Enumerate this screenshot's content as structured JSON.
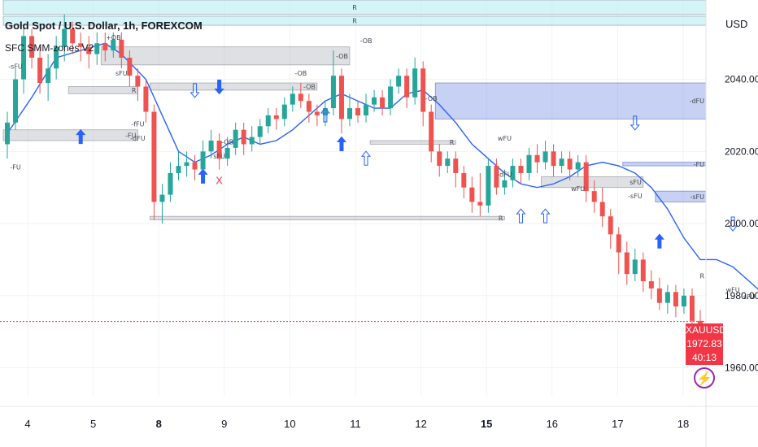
{
  "header": {
    "title": "Gold Spot / U.S. Dollar, 1h, FOREXCOM",
    "indicator": "SFC SMM-zones V2",
    "currency": "USD"
  },
  "price_tag": {
    "symbol": "XAUUSD",
    "price": "1972.83",
    "countdown": "40:13"
  },
  "bolt_icon": "lightning-icon",
  "colors": {
    "bull": "#26a69a",
    "bear": "#ef5350",
    "ema": "#2962ff",
    "zone_gray": "#9598a1",
    "zone_blue": "#5b7be0",
    "zone_cyan": "#b2ebf2",
    "hline": "#f23645"
  },
  "chart_data": {
    "type": "candlestick",
    "title": "Gold Spot / U.S. Dollar, 1h, FOREXCOM",
    "ylabel": "USD",
    "ylim": [
      1952,
      2062
    ],
    "y_ticks": [
      "1960.00",
      "1980.00",
      "2000.00",
      "2020.00",
      "2040.00"
    ],
    "x_ticks": [
      "4",
      "5",
      "8",
      "9",
      "10",
      "11",
      "12",
      "15",
      "16",
      "17",
      "18"
    ],
    "bold_x_ticks": [
      "8",
      "15"
    ],
    "last_price": 1972.83,
    "ema": [
      [
        0,
        2025
      ],
      [
        3,
        2035
      ],
      [
        6,
        2046
      ],
      [
        9,
        2048
      ],
      [
        12,
        2050
      ],
      [
        14,
        2047
      ],
      [
        17,
        2040
      ],
      [
        19,
        2030
      ],
      [
        21,
        2020
      ],
      [
        23,
        2017
      ],
      [
        25,
        2019
      ],
      [
        27,
        2022
      ],
      [
        29,
        2024
      ],
      [
        31,
        2022
      ],
      [
        33,
        2023
      ],
      [
        35,
        2026
      ],
      [
        37,
        2030
      ],
      [
        39,
        2034
      ],
      [
        41,
        2036
      ],
      [
        43,
        2034
      ],
      [
        45,
        2032
      ],
      [
        47,
        2032
      ],
      [
        49,
        2036
      ],
      [
        51,
        2037
      ],
      [
        53,
        2033
      ],
      [
        55,
        2028
      ],
      [
        57,
        2022
      ],
      [
        59,
        2018
      ],
      [
        61,
        2014
      ],
      [
        63,
        2011
      ],
      [
        65,
        2010
      ],
      [
        67,
        2011
      ],
      [
        69,
        2013
      ],
      [
        71,
        2016
      ],
      [
        73,
        2017
      ],
      [
        75,
        2016
      ],
      [
        77,
        2014
      ],
      [
        79,
        2010
      ],
      [
        81,
        2004
      ],
      [
        83,
        1996
      ],
      [
        85,
        1990
      ],
      [
        87,
        1990
      ],
      [
        89,
        1988
      ],
      [
        91,
        1984
      ],
      [
        93,
        1980
      ],
      [
        95,
        1978
      ]
    ],
    "candles": [
      [
        2022,
        2028,
        2018,
        2031
      ],
      [
        2028,
        2040,
        2026,
        2043
      ],
      [
        2040,
        2052,
        2036,
        2055
      ],
      [
        2052,
        2046,
        2043,
        2054
      ],
      [
        2046,
        2039,
        2036,
        2049
      ],
      [
        2039,
        2043,
        2034,
        2047
      ],
      [
        2043,
        2049,
        2040,
        2052
      ],
      [
        2049,
        2054,
        2045,
        2058
      ],
      [
        2054,
        2050,
        2047,
        2056
      ],
      [
        2050,
        2049,
        2045,
        2053
      ],
      [
        2049,
        2047,
        2043,
        2052
      ],
      [
        2047,
        2050,
        2044,
        2053
      ],
      [
        2050,
        2048,
        2045,
        2053
      ],
      [
        2048,
        2051,
        2046,
        2053
      ],
      [
        2051,
        2046,
        2043,
        2053
      ],
      [
        2046,
        2041,
        2038,
        2048
      ],
      [
        2041,
        2038,
        2034,
        2043
      ],
      [
        2038,
        2031,
        2028,
        2040
      ],
      [
        2031,
        2006,
        2001,
        2033
      ],
      [
        2006,
        2008,
        2000,
        2011
      ],
      [
        2008,
        2014,
        2006,
        2017
      ],
      [
        2014,
        2016,
        2012,
        2020
      ],
      [
        2016,
        2017,
        2013,
        2020
      ],
      [
        2017,
        2015,
        2012,
        2019
      ],
      [
        2015,
        2020,
        2013,
        2023
      ],
      [
        2020,
        2023,
        2018,
        2026
      ],
      [
        2023,
        2018,
        2015,
        2025
      ],
      [
        2018,
        2021,
        2016,
        2024
      ],
      [
        2021,
        2026,
        2019,
        2028
      ],
      [
        2026,
        2022,
        2019,
        2028
      ],
      [
        2022,
        2024,
        2020,
        2027
      ],
      [
        2024,
        2027,
        2022,
        2029
      ],
      [
        2027,
        2030,
        2025,
        2032
      ],
      [
        2030,
        2029,
        2026,
        2032
      ],
      [
        2029,
        2033,
        2027,
        2035
      ],
      [
        2033,
        2036,
        2031,
        2038
      ],
      [
        2036,
        2034,
        2032,
        2039
      ],
      [
        2034,
        2031,
        2028,
        2036
      ],
      [
        2031,
        2030,
        2027,
        2033
      ],
      [
        2030,
        2032,
        2027,
        2034
      ],
      [
        2032,
        2041,
        2030,
        2048
      ],
      [
        2041,
        2029,
        2025,
        2043
      ],
      [
        2029,
        2032,
        2027,
        2036
      ],
      [
        2032,
        2030,
        2028,
        2034
      ],
      [
        2030,
        2033,
        2028,
        2036
      ],
      [
        2033,
        2035,
        2031,
        2037
      ],
      [
        2035,
        2032,
        2030,
        2037
      ],
      [
        2032,
        2038,
        2030,
        2040
      ],
      [
        2038,
        2041,
        2036,
        2043
      ],
      [
        2041,
        2035,
        2032,
        2043
      ],
      [
        2035,
        2043,
        2033,
        2046
      ],
      [
        2043,
        2031,
        2027,
        2045
      ],
      [
        2031,
        2020,
        2017,
        2033
      ],
      [
        2020,
        2016,
        2013,
        2022
      ],
      [
        2016,
        2018,
        2014,
        2020
      ],
      [
        2018,
        2014,
        2010,
        2020
      ],
      [
        2014,
        2010,
        2007,
        2016
      ],
      [
        2010,
        2006,
        2003,
        2013
      ],
      [
        2006,
        2005,
        2002,
        2014
      ],
      [
        2005,
        2016,
        2003,
        2018
      ],
      [
        2016,
        2010,
        2008,
        2018
      ],
      [
        2010,
        2012,
        2008,
        2015
      ],
      [
        2012,
        2016,
        2010,
        2018
      ],
      [
        2016,
        2014,
        2011,
        2018
      ],
      [
        2014,
        2019,
        2012,
        2021
      ],
      [
        2019,
        2017,
        2014,
        2022
      ],
      [
        2017,
        2020,
        2015,
        2023
      ],
      [
        2020,
        2016,
        2013,
        2022
      ],
      [
        2016,
        2018,
        2014,
        2020
      ],
      [
        2018,
        2015,
        2012,
        2020
      ],
      [
        2015,
        2017,
        2013,
        2019
      ],
      [
        2017,
        2009,
        2006,
        2019
      ],
      [
        2009,
        2006,
        2003,
        2012
      ],
      [
        2006,
        2002,
        1999,
        2010
      ],
      [
        2002,
        1997,
        1993,
        2004
      ],
      [
        1997,
        1992,
        1986,
        1999
      ],
      [
        1992,
        1986,
        1983,
        1995
      ],
      [
        1986,
        1990,
        1984,
        1993
      ],
      [
        1990,
        1984,
        1981,
        1992
      ],
      [
        1984,
        1982,
        1979,
        1987
      ],
      [
        1982,
        1978,
        1976,
        1985
      ],
      [
        1978,
        1981,
        1975,
        1983
      ],
      [
        1981,
        1977,
        1974,
        1983
      ],
      [
        1977,
        1980,
        1975,
        1982
      ],
      [
        1980,
        1973,
        1971,
        1982
      ],
      [
        1973,
        1972,
        1970,
        1976
      ]
    ]
  },
  "zones": [
    {
      "label": "R",
      "lo": 2058.0,
      "hi": 2062.0,
      "i0": 0,
      "i1": 96,
      "kind": "cyan"
    },
    {
      "label": "R",
      "lo": 2055.0,
      "hi": 2057.5,
      "i0": 0,
      "i1": 96,
      "kind": "cyan"
    },
    {
      "label": "-OB",
      "lo": 2044,
      "hi": 2049,
      "i0": 12,
      "i1": 42,
      "kind": "gray"
    },
    {
      "label": "R",
      "lo": 2036,
      "hi": 2038,
      "i0": 8,
      "i1": 16,
      "kind": "gray"
    },
    {
      "label": "-OB",
      "lo": 2037,
      "hi": 2039,
      "i0": 18,
      "i1": 38,
      "kind": "gray"
    },
    {
      "label": "-FU",
      "lo": 2023,
      "hi": 2026,
      "i0": 0,
      "i1": 16,
      "kind": "gray"
    },
    {
      "label": "R",
      "lo": 2022,
      "hi": 2023,
      "i0": 45,
      "i1": 55,
      "kind": "gray"
    },
    {
      "label": "-dFU",
      "lo": 2029,
      "hi": 2039,
      "i0": 53,
      "i1": 96,
      "kind": "blue"
    },
    {
      "label": "-FU",
      "lo": 2016,
      "hi": 2017,
      "i0": 76,
      "i1": 96,
      "kind": "blue"
    },
    {
      "label": "-sFU",
      "lo": 2006,
      "hi": 2009,
      "i0": 80,
      "i1": 96,
      "kind": "blue"
    },
    {
      "label": "R",
      "lo": 2001,
      "hi": 2002,
      "i0": 18,
      "i1": 61,
      "kind": "gray"
    },
    {
      "label": "sFU",
      "lo": 2010,
      "hi": 2013,
      "i0": 66,
      "i1": 78,
      "kind": "gray"
    },
    {
      "label": "R",
      "lo": 1984,
      "hi": 1987,
      "i0": 87,
      "i1": 96,
      "kind": "gray"
    }
  ],
  "arrows": [
    {
      "i": 9,
      "v": 2024,
      "dir": "up",
      "filled": true
    },
    {
      "i": 23,
      "v": 2037,
      "dir": "down",
      "filled": false
    },
    {
      "i": 26,
      "v": 2038,
      "dir": "down",
      "filled": true
    },
    {
      "i": 24,
      "v": 2013,
      "dir": "up",
      "filled": true
    },
    {
      "i": 41,
      "v": 2022,
      "dir": "up",
      "filled": true
    },
    {
      "i": 44,
      "v": 2018,
      "dir": "up",
      "filled": false
    },
    {
      "i": 39,
      "v": 2030,
      "dir": "up",
      "filled": false
    },
    {
      "i": 63,
      "v": 2002,
      "dir": "up",
      "filled": false
    },
    {
      "i": 66,
      "v": 2002,
      "dir": "up",
      "filled": false
    },
    {
      "i": 77,
      "v": 2028,
      "dir": "down",
      "filled": false
    },
    {
      "i": 80,
      "v": 1995,
      "dir": "up",
      "filled": true
    },
    {
      "i": 89,
      "v": 2000,
      "dir": "down",
      "filled": false
    },
    {
      "i": 93,
      "v": 1976,
      "dir": "up",
      "filled": true
    },
    {
      "i": 95,
      "v": 1989,
      "dir": "down",
      "filled": true
    }
  ],
  "annotations": [
    {
      "text": "-OB",
      "i": 44,
      "v": 2050
    },
    {
      "text": "-OB",
      "i": 36,
      "v": 2041
    },
    {
      "text": "-OB",
      "i": 52,
      "v": 2034
    },
    {
      "text": "-fFU",
      "i": 16,
      "v": 2027
    },
    {
      "text": "-dFU",
      "i": 16,
      "v": 2023
    },
    {
      "text": "sFU",
      "i": 14,
      "v": 2041
    },
    {
      "text": "-sFU",
      "i": 1,
      "v": 2043
    },
    {
      "text": "wFU",
      "i": 61,
      "v": 2023
    },
    {
      "text": "sFU",
      "i": 26,
      "v": 2018
    },
    {
      "text": "-OB",
      "i": 27,
      "v": 2022
    },
    {
      "text": "-dFU",
      "i": 61,
      "v": 2013
    },
    {
      "text": "wFU",
      "i": 70,
      "v": 2009
    },
    {
      "text": "-sFU",
      "i": 77,
      "v": 2007
    },
    {
      "text": "wFU",
      "i": 89,
      "v": 1981
    },
    {
      "text": "sFU",
      "i": 91,
      "v": 1979
    },
    {
      "text": "-FU",
      "i": 1,
      "v": 2015
    },
    {
      "text": "+OB",
      "i": 13,
      "v": 2051
    }
  ],
  "cross_marker": {
    "text": "X",
    "i": 26,
    "v": 2011
  }
}
